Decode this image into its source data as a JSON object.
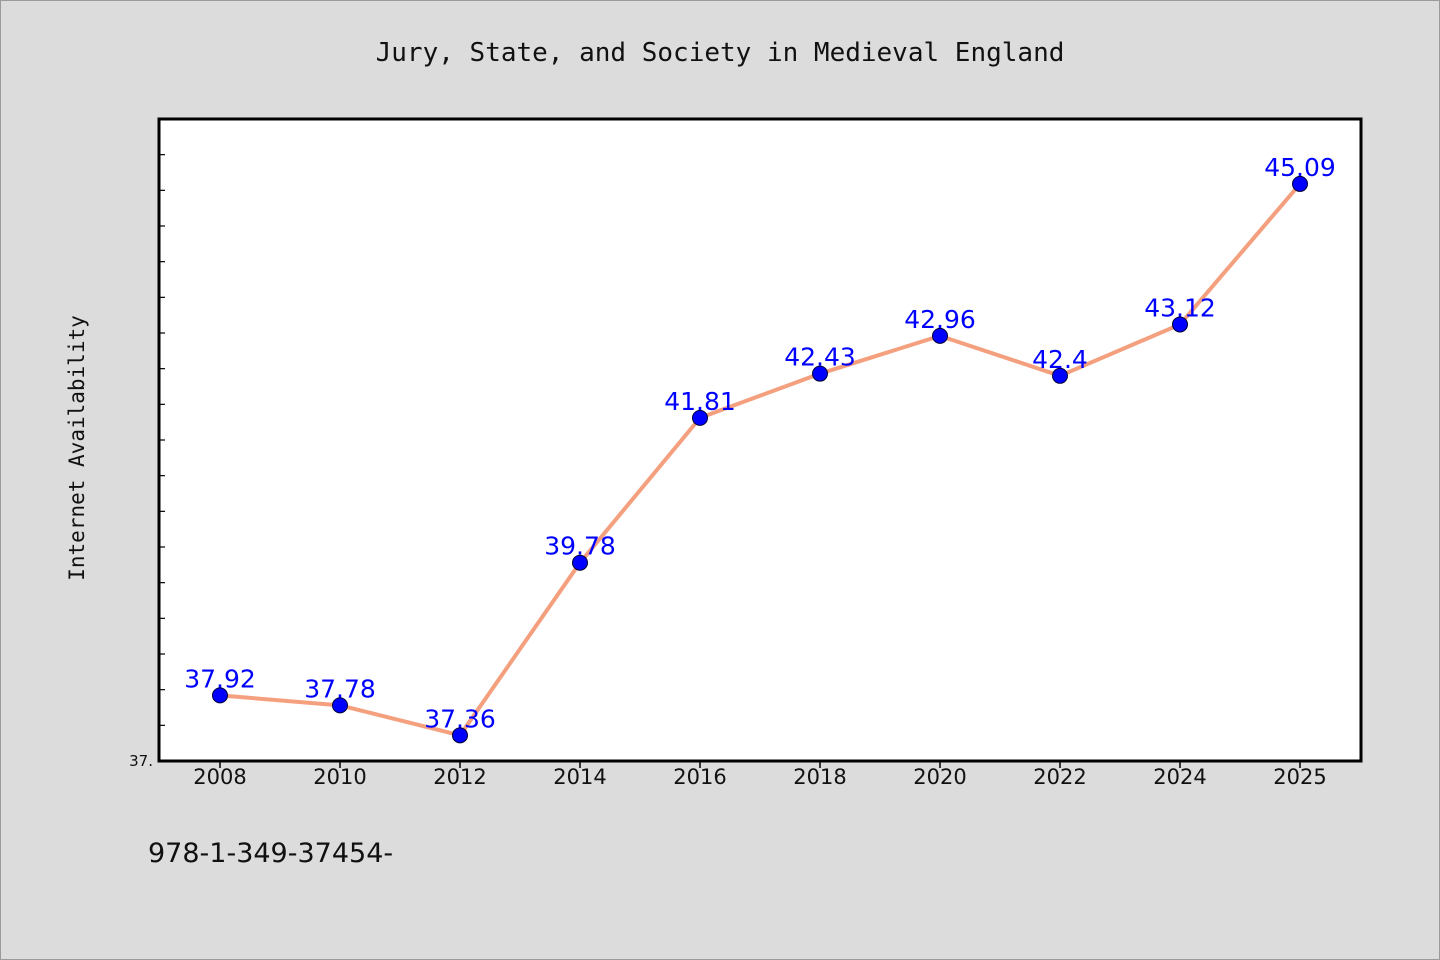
{
  "chart_data": {
    "type": "line",
    "title": "Jury, State, and Society in Medieval England",
    "ylabel": "Internet Availability",
    "xlabel": "",
    "categories": [
      "2008",
      "2010",
      "2012",
      "2014",
      "2016",
      "2018",
      "2020",
      "2022",
      "2024",
      "2025"
    ],
    "values": [
      37.92,
      37.78,
      37.36,
      39.78,
      41.81,
      42.43,
      42.96,
      42.4,
      43.12,
      45.09
    ],
    "data_labels": [
      "37.92",
      "37.78",
      "37.36",
      "39.78",
      "41.81",
      "42.43",
      "42.96",
      "42.4",
      "43.12",
      "45.09"
    ],
    "ylim": [
      37.0,
      46.0
    ],
    "y_tick_label": "37.",
    "grid": false,
    "line_color": "#f4a07e",
    "marker_color": "#0000ff",
    "label_color": "#0000ff",
    "plot_background": "#ffffff",
    "page_background": "#dcdcdc"
  },
  "footnote": "978-1-349-37454-"
}
